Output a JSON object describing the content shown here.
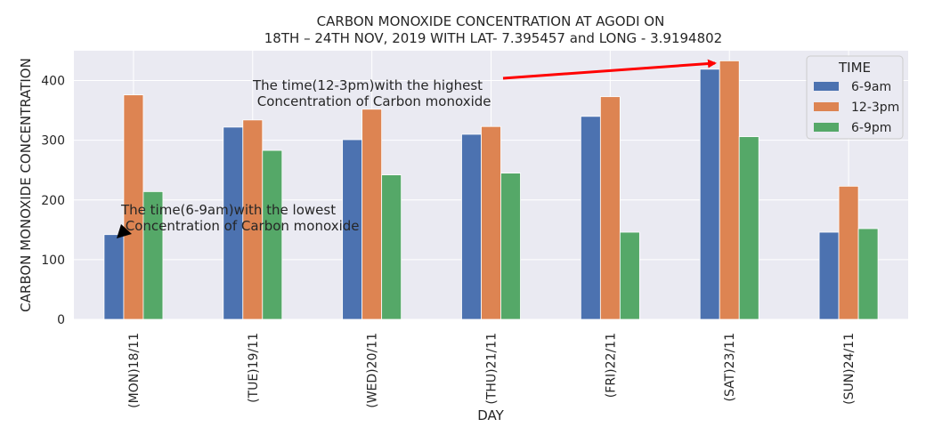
{
  "chart_data": {
    "type": "bar",
    "title_line1": "CARBON MONOXIDE CONCENTRATION AT AGODI ON",
    "title_line2": "18TH – 24TH NOV, 2019 WITH LAT- 7.395457 and LONG - 3.9194802",
    "xlabel": "DAY",
    "ylabel": "CARBON MONOXIDE CONCENTRATION",
    "categories": [
      "(MON)18/11",
      "(TUE)19/11",
      "(WED)20/11",
      "(THU)21/11",
      "(FRI)22/11",
      "(SAT)23/11",
      "(SUN)24/11"
    ],
    "series": [
      {
        "name": "6-9am",
        "color": "#4c72b0",
        "values": [
          142,
          322,
          301,
          310,
          340,
          419,
          146
        ]
      },
      {
        "name": "12-3pm",
        "color": "#dd8452",
        "values": [
          376,
          334,
          352,
          323,
          373,
          433,
          223
        ]
      },
      {
        "name": "6-9pm",
        "color": "#55a868",
        "values": [
          214,
          283,
          242,
          245,
          146,
          306,
          152
        ]
      }
    ],
    "ylim": [
      0,
      450
    ],
    "yticks": [
      0,
      100,
      200,
      300,
      400
    ],
    "grid": true,
    "legend": {
      "title": "TIME",
      "placement": "top-right"
    },
    "annotations": [
      {
        "line1": "The time(12-3pm)with the highest",
        "line2": " Concentration of Carbon monoxide",
        "arrow_color": "#ff0000"
      },
      {
        "line1": "The time(6-9am)with the lowest",
        "line2": " Concentration of Carbon monoxide",
        "arrow_color": "#000000"
      }
    ]
  }
}
